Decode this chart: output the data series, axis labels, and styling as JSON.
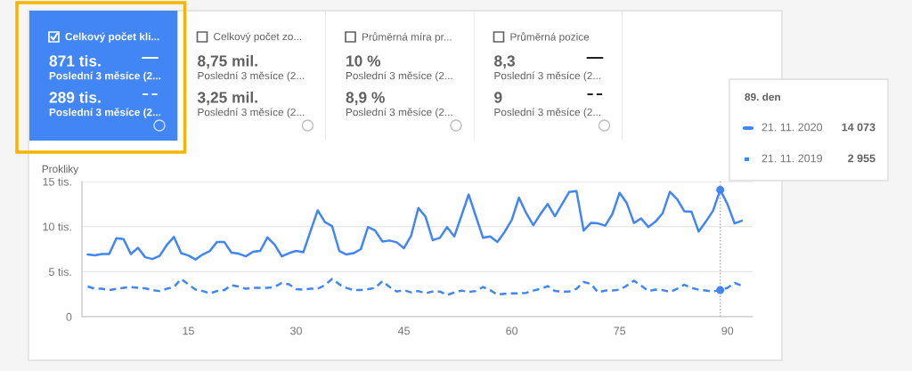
{
  "chart_data": [
    {
      "type": "other",
      "title": "Celkový počet kli...",
      "color": "#4285f4",
      "annotations": [
        "871 tis.",
        "Poslední 3 měsíce (2...",
        "289 tis.",
        "Poslední 3 měsíce (2..."
      ]
    },
    {
      "type": "other",
      "title": "Celkový počet zo...",
      "annotations": [
        "8,75 mil.",
        "Poslední 3 měsíce (2...",
        "3,25 mil.",
        "Poslední 3 měsíce (2..."
      ]
    },
    {
      "type": "other",
      "title": "Průměrná míra pr...",
      "annotations": [
        "10 %",
        "Poslední 3 měsíce (2...",
        "8,9 %",
        "Poslední 3 měsíce (2..."
      ]
    },
    {
      "type": "other",
      "title": "Průměrná pozice",
      "annotations": [
        "8,3",
        "Poslední 3 měsíce (2...",
        "9",
        "Poslední 3 měsíce (2..."
      ]
    },
    {
      "type": "line",
      "ylabel": "Prokliky",
      "legend_title": "89. den",
      "legend": "right",
      "grid": "y",
      "x": [
        1,
        2,
        3,
        4,
        5,
        6,
        7,
        8,
        9,
        10,
        11,
        12,
        13,
        14,
        15,
        16,
        17,
        18,
        19,
        20,
        21,
        22,
        23,
        24,
        25,
        26,
        27,
        28,
        29,
        30,
        31,
        32,
        33,
        34,
        35,
        36,
        37,
        38,
        39,
        40,
        41,
        42,
        43,
        44,
        45,
        46,
        47,
        48,
        49,
        50,
        51,
        52,
        53,
        54,
        55,
        56,
        57,
        58,
        59,
        60,
        61,
        62,
        63,
        64,
        65,
        66,
        67,
        68,
        69,
        70,
        71,
        72,
        73,
        74,
        75,
        76,
        77,
        78,
        79,
        80,
        81,
        82,
        83,
        84,
        85,
        86,
        87,
        88,
        89,
        90,
        91,
        92
      ],
      "series": [
        {
          "name": "21. 11. 2020",
          "color": "#4285f4",
          "line_style": "solid",
          "values": [
            6.9,
            6.8,
            6.95,
            6.95,
            8.7,
            8.6,
            6.95,
            7.65,
            6.6,
            6.4,
            6.75,
            7.95,
            8.85,
            7.05,
            6.8,
            6.35,
            6.9,
            7.3,
            8.3,
            8.3,
            7.1,
            7.0,
            6.7,
            7.2,
            7.3,
            8.8,
            8.0,
            6.7,
            7.05,
            7.3,
            7.15,
            9.5,
            11.8,
            10.5,
            10.05,
            7.3,
            6.9,
            7.05,
            7.5,
            9.95,
            9.55,
            8.35,
            8.45,
            8.25,
            7.6,
            9.0,
            12.05,
            11.1,
            8.5,
            8.75,
            9.95,
            8.9,
            11.2,
            13.55,
            11.15,
            8.75,
            8.9,
            8.3,
            9.4,
            10.75,
            13.2,
            11.5,
            10.15,
            11.4,
            12.5,
            11.15,
            12.5,
            13.85,
            13.95,
            9.55,
            10.4,
            10.35,
            10.1,
            11.4,
            13.75,
            12.6,
            10.4,
            10.9,
            9.95,
            10.55,
            11.5,
            13.85,
            13.05,
            11.7,
            11.65,
            9.45,
            10.55,
            11.75,
            14.073,
            12.5,
            10.35,
            10.65
          ]
        },
        {
          "name": "21. 11. 2019",
          "color": "#4285f4",
          "line_style": "dashed",
          "values": [
            3.35,
            3.1,
            3.1,
            2.95,
            3.1,
            3.2,
            3.3,
            3.2,
            3.15,
            2.95,
            2.85,
            3.1,
            3.3,
            4.2,
            3.6,
            3.0,
            2.85,
            2.6,
            2.85,
            2.95,
            3.5,
            3.35,
            3.1,
            3.2,
            3.2,
            3.2,
            3.3,
            3.75,
            3.6,
            3.05,
            3.0,
            3.1,
            3.1,
            3.5,
            4.2,
            3.6,
            3.2,
            2.95,
            2.95,
            3.05,
            3.2,
            3.95,
            3.3,
            2.8,
            2.95,
            2.7,
            2.85,
            2.6,
            2.8,
            2.8,
            2.4,
            2.7,
            2.9,
            2.75,
            2.85,
            3.3,
            2.95,
            2.45,
            2.55,
            2.6,
            2.6,
            2.65,
            2.9,
            3.1,
            3.4,
            2.85,
            2.8,
            2.8,
            3.1,
            3.85,
            3.65,
            2.7,
            2.9,
            2.9,
            3.0,
            3.45,
            4.0,
            3.45,
            2.85,
            3.0,
            2.95,
            2.75,
            3.1,
            3.55,
            3.2,
            3.0,
            2.9,
            2.8,
            2.955,
            3.2,
            3.75,
            3.45
          ]
        },
        {
          "type": "scatter",
          "x": [
            89
          ],
          "color": "#4285f4",
          "values": [
            14.073
          ]
        },
        {
          "type": "scatter",
          "x": [
            89
          ],
          "color": "#4285f4",
          "values": [
            2.955
          ]
        }
      ],
      "xlim": [
        0.2,
        93.5
      ],
      "ylim": [
        0,
        15
      ],
      "xticks": [
        15,
        30,
        45,
        60,
        75,
        90
      ],
      "yticks": [
        0,
        {
          "value": 5,
          "label": "5 tis."
        },
        {
          "value": 10,
          "label": "10 tis."
        },
        {
          "value": 15,
          "label": "15 tis."
        }
      ],
      "ref_lines": [
        {
          "axis": "x",
          "value": 89,
          "color": "#9e9e9e",
          "line_style": "dotted"
        }
      ],
      "annotations": [
        "14 073",
        "2 955"
      ]
    }
  ]
}
